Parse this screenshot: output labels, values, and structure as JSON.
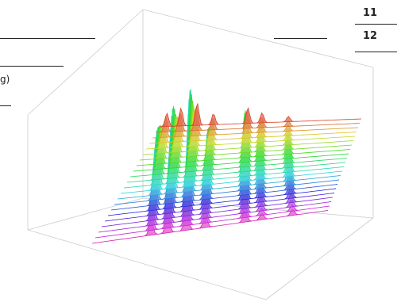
{
  "header": {
    "row_a": "11",
    "row_b": "12"
  },
  "body": {
    "fragment": "g)"
  }
}
